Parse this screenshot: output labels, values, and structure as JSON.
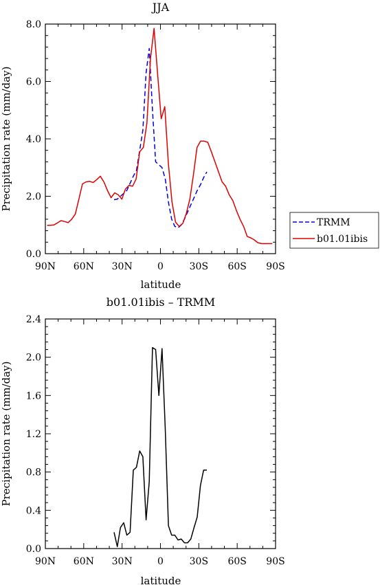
{
  "chart_data": [
    {
      "type": "line",
      "title": "JJA",
      "xlabel": "latitude",
      "ylabel": "Precipitation rate (mm/day)",
      "xlim": [
        90,
        -90
      ],
      "ylim": [
        0,
        8
      ],
      "x_ticks": [
        90,
        60,
        30,
        0,
        -30,
        -60,
        -90
      ],
      "x_tick_labels": [
        "90N",
        "60N",
        "30N",
        "0",
        "30S",
        "60S",
        "90S"
      ],
      "y_ticks": [
        0,
        2,
        4,
        6,
        8
      ],
      "y_tick_labels": [
        "0.0",
        "2.0",
        "4.0",
        "6.0",
        "8.0"
      ],
      "legend_position": "right",
      "series": [
        {
          "name": "TRMM",
          "color": "#0000dd",
          "dash": true,
          "x": [
            36.25,
            33.75,
            31.25,
            28.75,
            26.25,
            23.75,
            21.25,
            18.75,
            16.25,
            13.75,
            11.25,
            8.75,
            6.25,
            3.75,
            1.25,
            -1.25,
            -3.75,
            -6.25,
            -8.75,
            -11.25,
            -13.75,
            -16.25,
            -18.75,
            -21.25,
            -23.75,
            -26.25,
            -28.75,
            -31.25,
            -33.75,
            -36.25
          ],
          "values": [
            1.88,
            1.9,
            2.0,
            2.1,
            2.2,
            2.45,
            2.7,
            2.9,
            3.6,
            4.3,
            6.3,
            7.15,
            5.0,
            3.2,
            3.1,
            3.0,
            2.6,
            1.8,
            1.2,
            0.95,
            0.9,
            1.0,
            1.2,
            1.45,
            1.7,
            1.95,
            2.2,
            2.4,
            2.65,
            2.85
          ]
        },
        {
          "name": "b01.01ibis",
          "color": "#dd0000",
          "dash": false,
          "x": [
            88.6,
            86.2,
            83.4,
            80.6,
            77.8,
            75.0,
            72.2,
            69.4,
            66.6,
            63.8,
            61.0,
            58.2,
            55.4,
            52.6,
            49.8,
            47.0,
            44.2,
            41.4,
            38.6,
            35.8,
            33.0,
            30.2,
            27.4,
            24.6,
            21.8,
            19.0,
            16.2,
            13.4,
            10.6,
            7.8,
            5.0,
            2.2,
            -0.6,
            -3.4,
            -6.2,
            -9.0,
            -11.8,
            -14.6,
            -17.4,
            -20.2,
            -23.0,
            -25.8,
            -28.6,
            -31.4,
            -34.2,
            -37.0,
            -39.8,
            -42.6,
            -45.4,
            -48.2,
            -51.0,
            -53.8,
            -56.6,
            -59.4,
            -62.2,
            -65.0,
            -67.8,
            -70.6,
            -73.4,
            -76.2,
            -79.0,
            -81.8,
            -84.6,
            -87.4
          ],
          "values": [
            0.99,
            0.99,
            1.0,
            1.07,
            1.15,
            1.12,
            1.08,
            1.2,
            1.38,
            1.9,
            2.43,
            2.5,
            2.52,
            2.48,
            2.58,
            2.7,
            2.5,
            2.2,
            1.95,
            2.12,
            2.05,
            1.9,
            2.25,
            2.38,
            2.35,
            2.6,
            3.55,
            3.7,
            4.55,
            6.8,
            7.85,
            6.25,
            4.7,
            5.12,
            3.15,
            1.8,
            1.1,
            0.95,
            1.05,
            1.4,
            1.9,
            2.75,
            3.7,
            3.92,
            3.92,
            3.88,
            3.55,
            3.2,
            2.85,
            2.5,
            2.35,
            2.05,
            1.85,
            1.5,
            1.2,
            0.95,
            0.6,
            0.55,
            0.48,
            0.38,
            0.35,
            0.35,
            0.35,
            0.35
          ]
        }
      ]
    },
    {
      "type": "line",
      "title": "b01.01ibis – TRMM",
      "xlabel": "latitude",
      "ylabel": "Precipitation rate (mm/day)",
      "xlim": [
        90,
        -90
      ],
      "ylim": [
        0,
        2.4
      ],
      "x_ticks": [
        90,
        60,
        30,
        0,
        -30,
        -60,
        -90
      ],
      "x_tick_labels": [
        "90N",
        "60N",
        "30N",
        "0",
        "30S",
        "60S",
        "90S"
      ],
      "y_ticks": [
        0,
        0.4,
        0.8,
        1.2,
        1.6,
        2.0,
        2.4
      ],
      "y_tick_labels": [
        "0.0",
        "0.4",
        "0.8",
        "1.2",
        "1.6",
        "2.0",
        "2.4"
      ],
      "series": [
        {
          "name": "",
          "color": "#000000",
          "dash": false,
          "x": [
            36.25,
            33.75,
            31.25,
            28.75,
            26.25,
            23.75,
            21.25,
            18.75,
            16.25,
            13.75,
            11.25,
            8.75,
            6.25,
            3.75,
            1.25,
            -1.25,
            -3.75,
            -6.25,
            -8.75,
            -11.25,
            -13.75,
            -16.25,
            -18.75,
            -21.25,
            -23.75,
            -26.25,
            -28.75,
            -31.25,
            -33.75,
            -36.25
          ],
          "values": [
            0.17,
            0.02,
            0.22,
            0.27,
            0.14,
            0.17,
            0.82,
            0.85,
            1.02,
            0.96,
            0.3,
            0.7,
            2.1,
            2.08,
            1.6,
            2.09,
            1.25,
            0.24,
            0.14,
            0.14,
            0.09,
            0.1,
            0.06,
            0.06,
            0.1,
            0.22,
            0.33,
            0.66,
            0.82,
            0.82
          ]
        }
      ]
    }
  ]
}
